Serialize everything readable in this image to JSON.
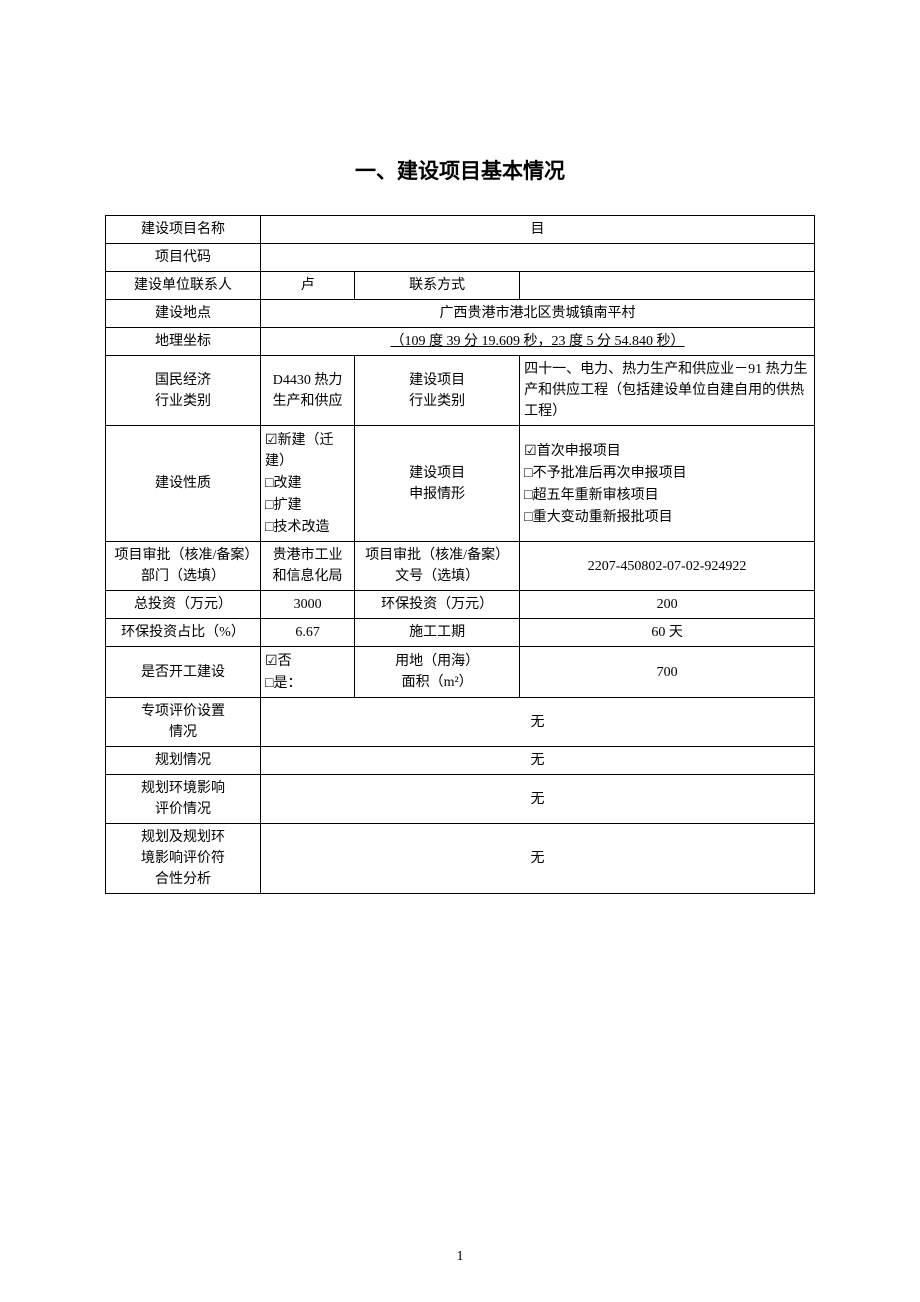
{
  "title": "一、建设项目基本情况",
  "rows": {
    "project_name": {
      "label": "建设项目名称",
      "value": "目"
    },
    "project_code": {
      "label": "项目代码",
      "value": ""
    },
    "contact_person": {
      "label": "建设单位联系人",
      "value": "卢"
    },
    "contact_method": {
      "label": "联系方式",
      "value": ""
    },
    "location": {
      "label": "建设地点",
      "value": "广西贵港市港北区贵城镇南平村"
    },
    "coords": {
      "label": "地理坐标",
      "value": "（109 度 39 分 19.609 秒，23 度 5 分 54.840 秒）"
    },
    "economy_category": {
      "label1": "国民经济",
      "label2": "行业类别",
      "value": "D4430 热力生产和供应"
    },
    "project_category": {
      "label1": "建设项目",
      "label2": "行业类别",
      "value": "四十一、电力、热力生产和供应业－91 热力生产和供应工程（包括建设单位自建自用的供热工程）"
    },
    "nature": {
      "label": "建设性质",
      "items": [
        {
          "checked": true,
          "text": "新建（迁建）"
        },
        {
          "checked": false,
          "text": "改建"
        },
        {
          "checked": false,
          "text": "扩建"
        },
        {
          "checked": false,
          "text": "技术改造"
        }
      ]
    },
    "declare": {
      "label1": "建设项目",
      "label2": "申报情形",
      "items": [
        {
          "checked": true,
          "text": "首次申报项目"
        },
        {
          "checked": false,
          "text": "不予批准后再次申报项目"
        },
        {
          "checked": false,
          "text": "超五年重新审核项目"
        },
        {
          "checked": false,
          "text": "重大变动重新报批项目"
        }
      ]
    },
    "approval_dept": {
      "label": "项目审批（核准/备案）部门（选填）",
      "value": "贵港市工业和信息化局"
    },
    "approval_no": {
      "label": "项目审批（核准/备案）文号（选填）",
      "value": "2207-450802-07-02-924922"
    },
    "total_invest": {
      "label": "总投资（万元）",
      "value": "3000"
    },
    "env_invest": {
      "label": "环保投资（万元）",
      "value": "200"
    },
    "env_ratio": {
      "label": "环保投资占比（%）",
      "value": "6.67"
    },
    "construction_period": {
      "label": "施工工期",
      "value": "60 天"
    },
    "started": {
      "label": "是否开工建设",
      "items": [
        {
          "checked": true,
          "text": "否"
        },
        {
          "checked": false,
          "text": "是："
        }
      ]
    },
    "land_area": {
      "label1": "用地（用海）",
      "label2": "面积（m²）",
      "value": "700"
    },
    "special_eval": {
      "label1": "专项评价设置",
      "label2": "情况",
      "value": "无"
    },
    "planning": {
      "label": "规划情况",
      "value": "无"
    },
    "planning_env": {
      "label1": "规划环境影响",
      "label2": "评价情况",
      "value": "无"
    },
    "planning_conform": {
      "label1": "规划及规划环",
      "label2": "境影响评价符",
      "label3": "合性分析",
      "value": "无"
    }
  },
  "page_number": "1",
  "checkbox_checked": "☑",
  "checkbox_unchecked": "□",
  "colors": {
    "background": "#ffffff",
    "text": "#000000",
    "border": "#000000"
  },
  "typography": {
    "body_fontsize": 14,
    "title_fontsize": 21,
    "font_family": "SimSun"
  }
}
